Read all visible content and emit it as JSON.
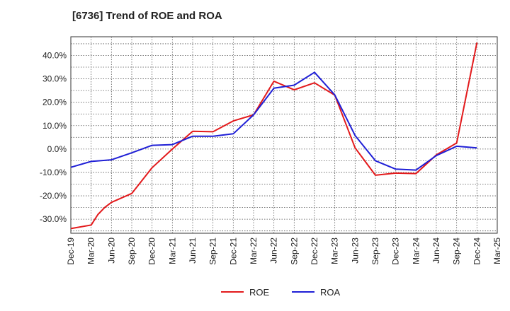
{
  "chart_data": {
    "type": "line",
    "title": "[6736]  Trend of ROE and ROA",
    "xlabel": "",
    "ylabel": "",
    "x_ticks": [
      "Dec-19",
      "Mar-20",
      "Jun-20",
      "Sep-20",
      "Dec-20",
      "Mar-21",
      "Jun-21",
      "Sep-21",
      "Dec-21",
      "Mar-22",
      "Jun-22",
      "Sep-22",
      "Dec-22",
      "Mar-23",
      "Jun-23",
      "Sep-23",
      "Dec-23",
      "Mar-24",
      "Jun-24",
      "Sep-24",
      "Dec-24",
      "Mar-25"
    ],
    "y_ticks": [
      "40.0%",
      "30.0%",
      "20.0%",
      "10.0%",
      "0.0%",
      "-10.0%",
      "-20.0%",
      "-30.0%"
    ],
    "y_tick_values": [
      40,
      30,
      20,
      10,
      0,
      -10,
      -20,
      -30
    ],
    "ylim": [
      -36,
      48
    ],
    "grid": true,
    "legend_position": "bottom-center",
    "series": [
      {
        "name": "ROE",
        "color": "#e31a1c",
        "points": [
          [
            "Dec-19",
            -34.0
          ],
          [
            "Mar-20",
            -32.5
          ],
          [
            "Apr-20",
            -28.0
          ],
          [
            "May-20",
            -25.0
          ],
          [
            "Jun-20",
            -22.8
          ],
          [
            "Sep-20",
            -19.0
          ],
          [
            "Dec-20",
            -8.0
          ],
          [
            "Mar-21",
            0.0
          ],
          [
            "Jun-21",
            7.6
          ],
          [
            "Sep-21",
            7.4
          ],
          [
            "Dec-21",
            12.0
          ],
          [
            "Mar-22",
            14.6
          ],
          [
            "Jun-22",
            29.0
          ],
          [
            "Sep-22",
            25.3
          ],
          [
            "Dec-22",
            28.3
          ],
          [
            "Mar-23",
            23.0
          ],
          [
            "Jun-23",
            0.5
          ],
          [
            "Sep-23",
            -11.2
          ],
          [
            "Dec-23",
            -10.3
          ],
          [
            "Mar-24",
            -10.5
          ],
          [
            "Jun-24",
            -2.5
          ],
          [
            "Sep-24",
            2.6
          ],
          [
            "Dec-24",
            45.5
          ]
        ]
      },
      {
        "name": "ROA",
        "color": "#1f1fd6",
        "points": [
          [
            "Dec-19",
            -7.8
          ],
          [
            "Mar-20",
            -5.3
          ],
          [
            "Jun-20",
            -4.6
          ],
          [
            "Sep-20",
            -1.6
          ],
          [
            "Dec-20",
            1.6
          ],
          [
            "Mar-21",
            1.9
          ],
          [
            "Jun-21",
            5.5
          ],
          [
            "Sep-21",
            5.5
          ],
          [
            "Dec-21",
            6.5
          ],
          [
            "Mar-22",
            14.6
          ],
          [
            "Jun-22",
            26.0
          ],
          [
            "Sep-22",
            27.3
          ],
          [
            "Dec-22",
            32.8
          ],
          [
            "Mar-23",
            23.1
          ],
          [
            "Jun-23",
            5.8
          ],
          [
            "Sep-23",
            -5.0
          ],
          [
            "Dec-23",
            -8.6
          ],
          [
            "Mar-24",
            -9.0
          ],
          [
            "Jun-24",
            -2.8
          ],
          [
            "Sep-24",
            1.2
          ],
          [
            "Dec-24",
            0.5
          ]
        ]
      }
    ]
  }
}
